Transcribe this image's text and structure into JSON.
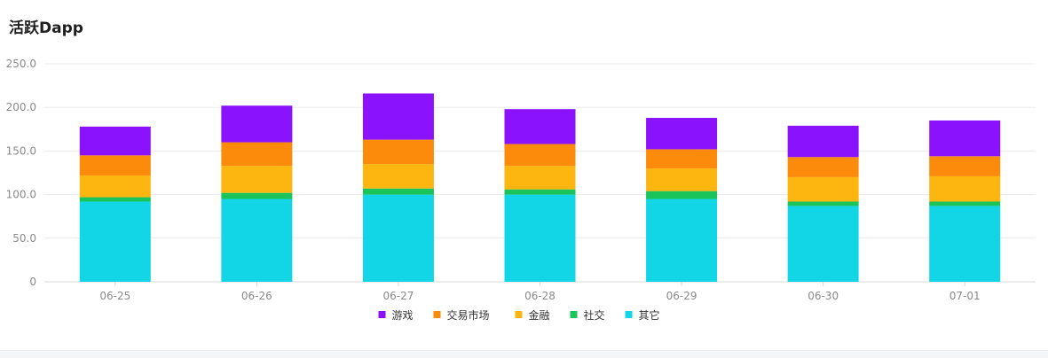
{
  "page": {
    "title": "活跃Dapp"
  },
  "chart_data": {
    "type": "bar",
    "stacked": true,
    "title": "活跃Dapp",
    "categories": [
      "06-25",
      "06-26",
      "06-27",
      "06-28",
      "06-29",
      "06-30",
      "07-01"
    ],
    "ylim": [
      0,
      250
    ],
    "yticks": [
      "0",
      "50.0",
      "100.0",
      "150.0",
      "200.0",
      "250.0"
    ],
    "grid": true,
    "legend_position": "bottom",
    "series": [
      {
        "name": "其它",
        "color": "#12d6e6",
        "values": [
          92,
          95,
          100,
          100,
          95,
          87,
          87
        ]
      },
      {
        "name": "社交",
        "color": "#1ac45a",
        "values": [
          5,
          7,
          7,
          6,
          9,
          5,
          5
        ]
      },
      {
        "name": "金融",
        "color": "#fdb50f",
        "values": [
          25,
          31,
          28,
          27,
          26,
          28,
          29
        ]
      },
      {
        "name": "交易市场",
        "color": "#fd8b0b",
        "values": [
          23,
          27,
          28,
          25,
          22,
          23,
          23
        ]
      },
      {
        "name": "游戏",
        "color": "#8b12fc",
        "values": [
          33,
          42,
          53,
          40,
          36,
          36,
          41
        ]
      }
    ],
    "legend_order": [
      "游戏",
      "交易市场",
      "金融",
      "社交",
      "其它"
    ]
  }
}
